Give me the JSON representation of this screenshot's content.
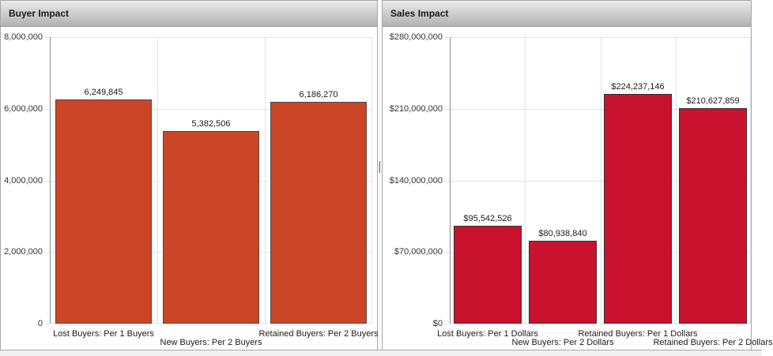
{
  "chart_data": [
    {
      "type": "bar",
      "title": "Buyer Impact",
      "categories": [
        "Lost Buyers: Per 1 Buyers",
        "New Buyers: Per 2 Buyers",
        "Retained Buyers: Per 2 Buyers"
      ],
      "values": [
        6249845,
        5382506,
        6186270
      ],
      "value_labels": [
        "6,249,845",
        "5,382,506",
        "6,186,270"
      ],
      "ylim": [
        0,
        8000000
      ],
      "yticks": [
        {
          "value": 8000000,
          "label": "8,000,000"
        },
        {
          "value": 6000000,
          "label": "6,000,000"
        },
        {
          "value": 4000000,
          "label": "4,000,000"
        },
        {
          "value": 2000000,
          "label": "2,000,000"
        },
        {
          "value": 0,
          "label": "0"
        }
      ],
      "xlabel": "",
      "ylabel": "",
      "legend_position": "none",
      "grid": true,
      "bar_color": "#cb4627",
      "bar_border_color": "#4a4a4a",
      "gridline_color": "#dde5f0"
    },
    {
      "type": "bar",
      "title": "Sales Impact",
      "categories": [
        "Lost Buyers: Per 1 Dollars",
        "New Buyers: Per 2 Dollars",
        "Retained Buyers: Per 1 Dollars",
        "Retained Buyers: Per 2 Dollars"
      ],
      "values": [
        95542526,
        80938840,
        224237146,
        210627859
      ],
      "value_labels": [
        "$95,542,526",
        "$80,938,840",
        "$224,237,146",
        "$210,627,859"
      ],
      "ylim": [
        0,
        280000000
      ],
      "yticks": [
        {
          "value": 280000000,
          "label": "$280,000,000"
        },
        {
          "value": 210000000,
          "label": "$210,000,000"
        },
        {
          "value": 140000000,
          "label": "$140,000,000"
        },
        {
          "value": 70000000,
          "label": "$70,000,000"
        },
        {
          "value": 0,
          "label": "$0"
        }
      ],
      "xlabel": "",
      "ylabel": "",
      "legend_position": "none",
      "grid": true,
      "bar_color": "#c8122e",
      "bar_border_color": "#333333",
      "gridline_color": "#dde5f0"
    }
  ],
  "colors": {
    "header_gradient_top": "#ececec",
    "header_gradient_bottom": "#b2b2b2",
    "panel_border": "#a6a6a6",
    "axis_line": "#8c8c8c",
    "gridline": "#dde5f0",
    "label_text": "#1a1a1a"
  }
}
